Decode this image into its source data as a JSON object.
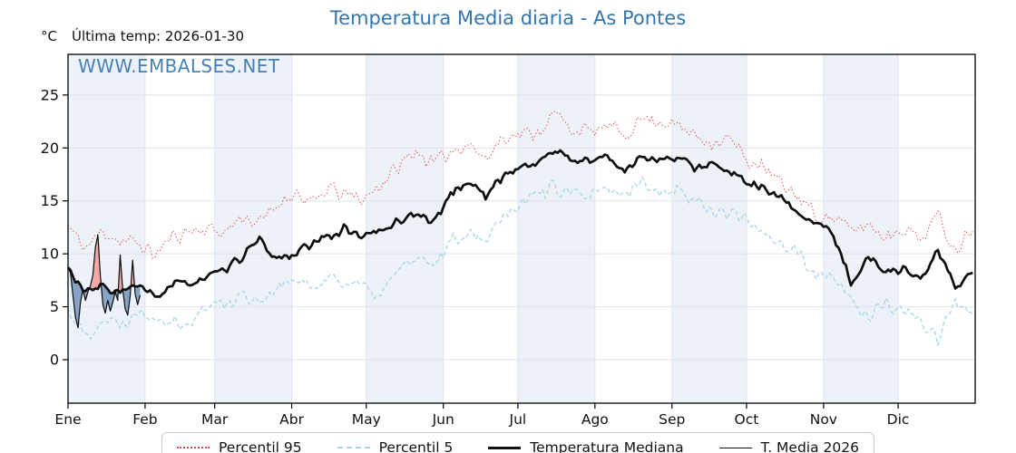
{
  "title": {
    "text": "Temperatura Media diaria - As Pontes",
    "color": "#3475af"
  },
  "labels": {
    "unit": "°C",
    "last_temp": "Última temp: 2026-01-30",
    "watermark": "WWW.EMBALSES.NET"
  },
  "legend": {
    "items": [
      {
        "label": "Percentil 95",
        "swatch": "dotted-red"
      },
      {
        "label": "Percentil 5",
        "swatch": "dashed-blue"
      },
      {
        "label": "Temperatura Mediana",
        "swatch": "thick-black"
      },
      {
        "label": "T. Media 2026",
        "swatch": "thin-black"
      }
    ]
  },
  "chart_data": {
    "type": "line",
    "title": "Temperatura Media diaria - As Pontes",
    "ylabel": "°C",
    "x_axis": {
      "unit": "day_of_year",
      "total_days": 365,
      "month_labels": [
        "Ene",
        "Feb",
        "Mar",
        "Abr",
        "May",
        "Jun",
        "Jul",
        "Ago",
        "Sep",
        "Oct",
        "Nov",
        "Dic"
      ],
      "month_start_days": [
        0,
        31,
        59,
        90,
        120,
        151,
        181,
        212,
        243,
        273,
        304,
        334
      ]
    },
    "y_axis": {
      "ticks": [
        0,
        5,
        10,
        15,
        20,
        25
      ],
      "shown_range": [
        -4.1,
        28.8
      ],
      "grid": true
    },
    "band_color": "#edf2f9",
    "grid_color": "#dfe3ec",
    "sampling_note": "weekly_values are 53 anchors (days 0,7,...,364) read off the plot; daily jitter of the noisy curves is re-synthesized with the stored seed/amplitude. daily_values of T. Media 2026 cover Jan 1-30 only.",
    "series": [
      {
        "name": "Percentil 95",
        "color": "#e64b4b",
        "line": "dotted",
        "noise_amp": 0.9,
        "seed": 11,
        "weekly_values": [
          12.6,
          10.5,
          12.2,
          11.2,
          11.0,
          9.9,
          11.6,
          12.2,
          12.4,
          12.0,
          13.6,
          12.8,
          14.6,
          15.9,
          14.6,
          16.2,
          15.5,
          15.2,
          16.6,
          18.2,
          19.8,
          18.4,
          19.7,
          20.6,
          18.8,
          21.2,
          21.2,
          21.6,
          23.2,
          21.8,
          21.5,
          22.0,
          21.3,
          22.8,
          22.6,
          22.1,
          21.3,
          20.6,
          20.9,
          18.9,
          18.0,
          16.6,
          15.4,
          13.6,
          13.4,
          12.2,
          12.8,
          11.6,
          12.6,
          11.4,
          13.6,
          10.4,
          12.6
        ]
      },
      {
        "name": "Percentil 5",
        "color": "#a5d5e8",
        "line": "dashed",
        "noise_amp": 0.85,
        "seed": 22,
        "weekly_values": [
          4.9,
          2.2,
          3.9,
          3.3,
          4.7,
          4.2,
          3.8,
          3.3,
          5.2,
          5.3,
          6.2,
          5.6,
          6.7,
          7.5,
          6.8,
          7.9,
          7.3,
          6.8,
          5.9,
          8.8,
          9.2,
          9.0,
          11.2,
          12.2,
          11.4,
          13.8,
          14.9,
          15.8,
          16.3,
          15.6,
          15.2,
          16.1,
          15.4,
          16.9,
          16.0,
          16.0,
          15.1,
          14.2,
          13.8,
          13.2,
          12.2,
          11.0,
          9.8,
          8.0,
          7.4,
          5.8,
          3.9,
          5.2,
          4.6,
          3.4,
          2.2,
          5.4,
          4.6
        ]
      },
      {
        "name": "Temperatura Mediana",
        "color": "#0d0d0d",
        "line": "solid-thick",
        "noise_amp": 0.5,
        "seed": 33,
        "weekly_values": [
          8.6,
          6.3,
          6.9,
          6.4,
          6.9,
          5.9,
          7.0,
          7.3,
          7.8,
          8.3,
          9.8,
          11.2,
          9.5,
          10.0,
          10.8,
          11.7,
          12.4,
          11.6,
          12.2,
          13.1,
          13.9,
          12.9,
          15.7,
          16.8,
          15.5,
          17.4,
          18.2,
          18.6,
          19.8,
          18.8,
          18.9,
          19.1,
          17.9,
          19.3,
          18.8,
          19.0,
          18.2,
          18.5,
          17.6,
          16.8,
          16.0,
          15.1,
          14.0,
          12.8,
          11.8,
          7.4,
          9.6,
          8.4,
          8.6,
          7.6,
          10.2,
          7.0,
          8.3
        ]
      },
      {
        "name": "T. Media 2026",
        "color": "#0d0d0d",
        "line": "solid-thin",
        "fill_above_median_color": "#ef9a9a",
        "fill_below_median_color": "#7396bd",
        "daily_values": [
          8.7,
          8.2,
          6.0,
          4.0,
          3.0,
          5.4,
          6.6,
          5.6,
          6.4,
          7.0,
          8.0,
          10.6,
          11.8,
          8.0,
          5.2,
          4.4,
          5.6,
          4.6,
          5.4,
          6.4,
          5.6,
          9.9,
          6.6,
          4.8,
          4.2,
          6.0,
          9.4,
          6.2,
          5.2,
          6.1
        ]
      }
    ]
  }
}
